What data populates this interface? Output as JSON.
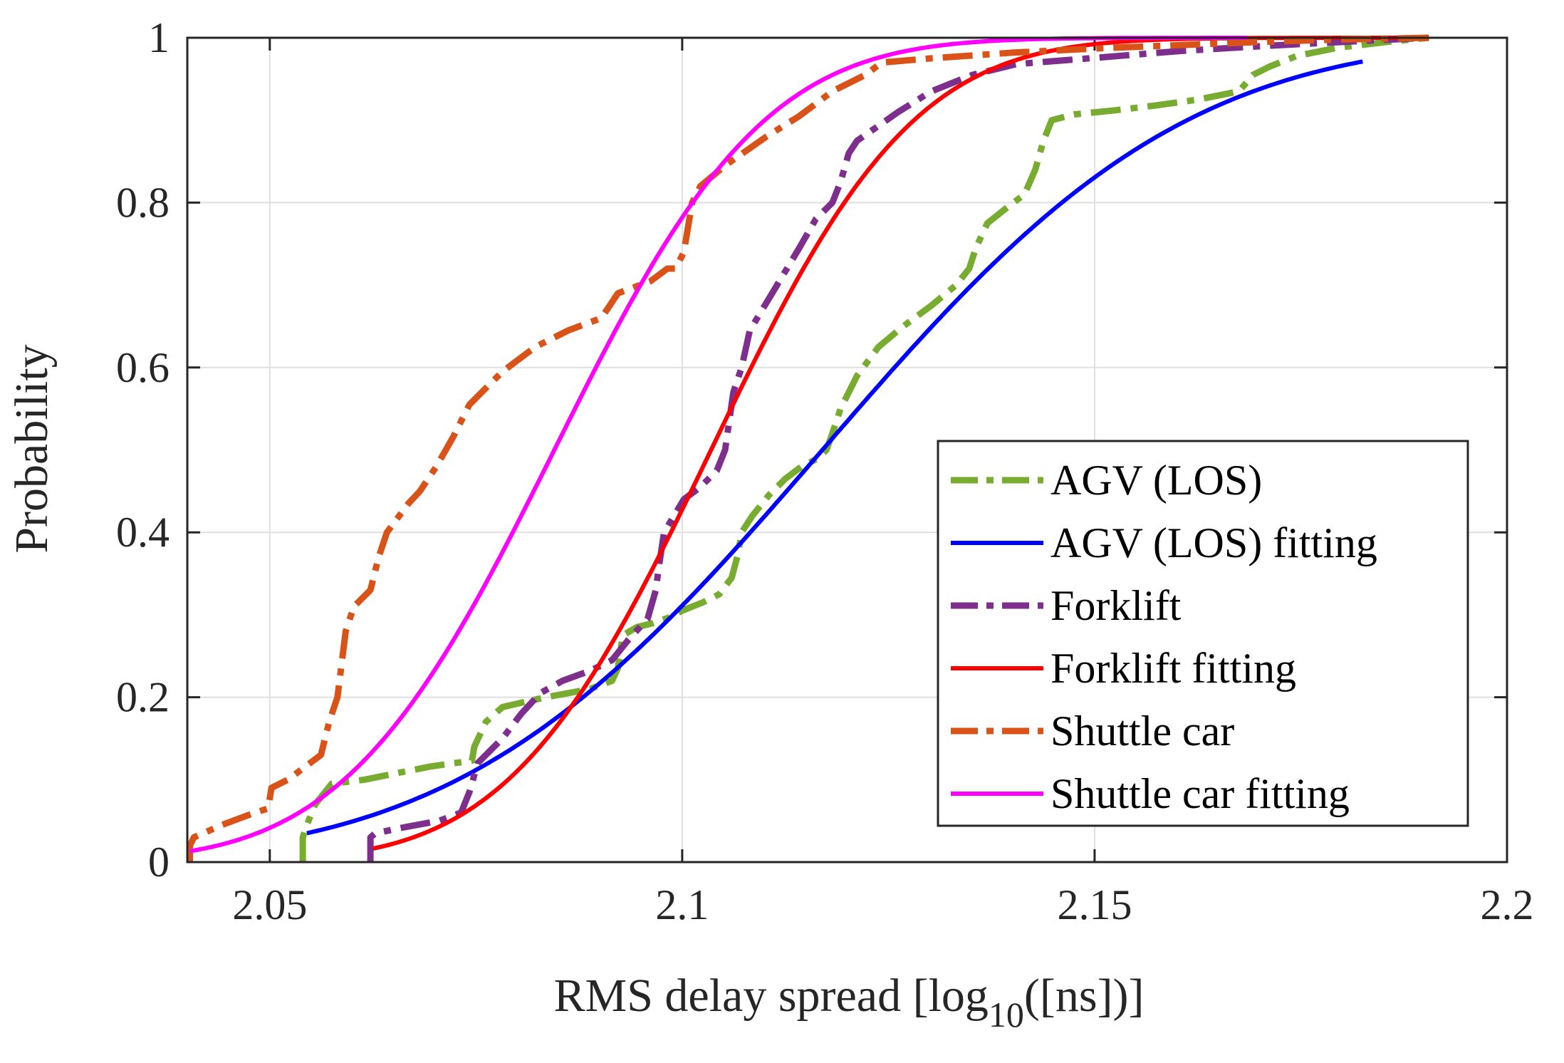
{
  "chart_data": {
    "type": "line",
    "xlabel_main": "RMS delay spread [log",
    "xlabel_sub": "10",
    "xlabel_tail": "([ns])]",
    "ylabel": "Probability",
    "xlim": [
      2.04,
      2.2
    ],
    "ylim": [
      0,
      1
    ],
    "xticks": [
      "2.05",
      "2.1",
      "2.15",
      "2.2"
    ],
    "yticks": [
      "0",
      "0.2",
      "0.4",
      "0.6",
      "0.8",
      "1"
    ],
    "xtick_values": [
      2.05,
      2.1,
      2.15,
      2.2
    ],
    "ytick_values": [
      0,
      0.2,
      0.4,
      0.6,
      0.8,
      1
    ],
    "grid": true,
    "legend_position": "bottom-right",
    "series": [
      {
        "name": "AGV (LOS)",
        "color": "#77ac30",
        "style": "dashdot",
        "x": [
          2.054,
          2.054,
          2.0545,
          2.0555,
          2.0575,
          2.0615,
          2.0655,
          2.0695,
          2.0745,
          2.0748,
          2.0762,
          2.0782,
          2.0808,
          2.0835,
          2.0862,
          2.0888,
          2.0915,
          2.0922,
          2.0928,
          2.0945,
          2.0965,
          2.0985,
          2.1,
          2.1025,
          2.1045,
          2.106,
          2.1068,
          2.1072,
          2.1085,
          2.1105,
          2.1125,
          2.1145,
          2.1165,
          2.1175,
          2.1182,
          2.1192,
          2.1212,
          2.1238,
          2.1268,
          2.1302,
          2.1332,
          2.1348,
          2.1356,
          2.137,
          2.1395,
          2.1415,
          2.1428,
          2.1438,
          2.1448,
          2.1475,
          2.1525,
          2.1575,
          2.1625,
          2.1675,
          2.1692,
          2.1712,
          2.1745,
          2.1795,
          2.1855,
          2.1905
        ],
        "y": [
          0.0,
          0.03,
          0.045,
          0.07,
          0.095,
          0.1,
          0.108,
          0.116,
          0.123,
          0.14,
          0.17,
          0.188,
          0.194,
          0.2,
          0.205,
          0.21,
          0.22,
          0.235,
          0.275,
          0.285,
          0.29,
          0.297,
          0.305,
          0.315,
          0.325,
          0.345,
          0.375,
          0.4,
          0.42,
          0.445,
          0.465,
          0.48,
          0.49,
          0.5,
          0.52,
          0.55,
          0.59,
          0.625,
          0.65,
          0.675,
          0.7,
          0.72,
          0.745,
          0.775,
          0.795,
          0.81,
          0.84,
          0.875,
          0.9,
          0.907,
          0.912,
          0.918,
          0.925,
          0.935,
          0.955,
          0.965,
          0.978,
          0.988,
          0.995,
          1.0
        ]
      },
      {
        "name": "AGV (LOS) fitting",
        "color": "#0000ff",
        "style": "solid",
        "model": "normal_cdf",
        "mu": 2.117,
        "sigma": 0.0345,
        "x_range": [
          2.0545,
          2.1825
        ]
      },
      {
        "name": "Forklift",
        "color": "#7e2f8e",
        "style": "dashdot",
        "x": [
          2.0622,
          2.0622,
          2.0628,
          2.0662,
          2.0705,
          2.0732,
          2.0742,
          2.0752,
          2.0782,
          2.0805,
          2.0828,
          2.0855,
          2.0888,
          2.0915,
          2.0935,
          2.0958,
          2.0968,
          2.0972,
          2.0978,
          2.1002,
          2.1022,
          2.1042,
          2.1052,
          2.1062,
          2.1072,
          2.1082,
          2.1112,
          2.1142,
          2.1162,
          2.1182,
          2.1192,
          2.1202,
          2.1212,
          2.1262,
          2.1302,
          2.1352,
          2.1405,
          2.1455,
          2.1505,
          2.1555,
          2.1605,
          2.1655,
          2.1705,
          2.1762,
          2.1822,
          2.1905
        ],
        "y": [
          0.0,
          0.03,
          0.035,
          0.042,
          0.05,
          0.06,
          0.085,
          0.12,
          0.15,
          0.18,
          0.205,
          0.22,
          0.232,
          0.245,
          0.27,
          0.295,
          0.33,
          0.36,
          0.4,
          0.44,
          0.455,
          0.475,
          0.5,
          0.57,
          0.6,
          0.645,
          0.695,
          0.745,
          0.78,
          0.8,
          0.825,
          0.86,
          0.875,
          0.91,
          0.935,
          0.955,
          0.968,
          0.972,
          0.976,
          0.98,
          0.984,
          0.987,
          0.99,
          0.993,
          0.996,
          1.0
        ]
      },
      {
        "name": "Forklift fitting",
        "color": "#ff0000",
        "style": "solid",
        "model": "normal_cdf",
        "mu": 2.1035,
        "sigma": 0.0192,
        "x_range": [
          2.0625,
          2.1905
        ]
      },
      {
        "name": "Shuttle car",
        "color": "#d95319",
        "style": "dashdot",
        "x": [
          2.0403,
          2.0403,
          2.0408,
          2.0442,
          2.0482,
          2.0498,
          2.0502,
          2.0522,
          2.0562,
          2.0572,
          2.0582,
          2.0592,
          2.0602,
          2.0622,
          2.0632,
          2.0642,
          2.0668,
          2.0682,
          2.0702,
          2.0722,
          2.0742,
          2.0782,
          2.0822,
          2.0862,
          2.0902,
          2.0922,
          2.0962,
          2.0982,
          2.0992,
          2.1002,
          2.1012,
          2.1022,
          2.1052,
          2.1102,
          2.1142,
          2.1182,
          2.1222,
          2.1242,
          2.1302,
          2.1402,
          2.1502,
          2.1602,
          2.1702,
          2.1802,
          2.1905
        ],
        "y": [
          0.0,
          0.02,
          0.03,
          0.045,
          0.06,
          0.065,
          0.09,
          0.1,
          0.13,
          0.17,
          0.2,
          0.28,
          0.31,
          0.33,
          0.37,
          0.4,
          0.435,
          0.45,
          0.48,
          0.515,
          0.555,
          0.595,
          0.625,
          0.645,
          0.66,
          0.69,
          0.705,
          0.72,
          0.72,
          0.74,
          0.8,
          0.82,
          0.845,
          0.88,
          0.905,
          0.935,
          0.955,
          0.97,
          0.975,
          0.982,
          0.987,
          0.991,
          0.995,
          0.998,
          1.0
        ]
      },
      {
        "name": "Shuttle car fitting",
        "color": "#ff00ff",
        "style": "solid",
        "model": "normal_cdf",
        "mu": 2.0845,
        "sigma": 0.0199,
        "x_range": [
          2.0403,
          2.1685
        ]
      }
    ]
  }
}
